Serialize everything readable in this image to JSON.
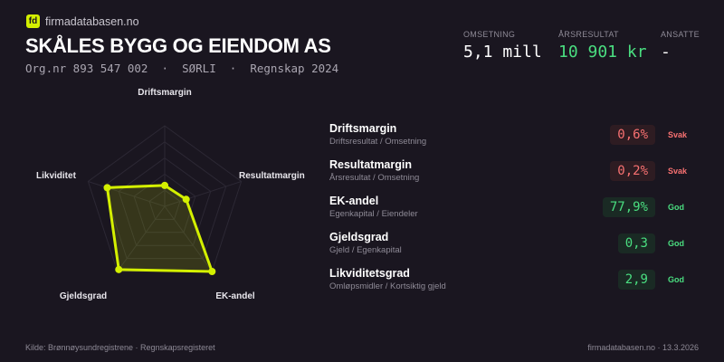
{
  "brand": {
    "logo_text": "fd",
    "name": "firmadatabasen.no"
  },
  "company": {
    "name": "SKÅLES BYGG OG EIENDOM AS",
    "subtitle": "Org.nr 893 547 002  ·  SØRLI  ·  Regnskap 2024"
  },
  "kpis": [
    {
      "label": "OMSETNING",
      "value": "5,1 mill",
      "color": "#ffffff"
    },
    {
      "label": "ÅRSRESULTAT",
      "value": "10 901 kr",
      "color": "#4ade80"
    },
    {
      "label": "ANSATTE",
      "value": "-",
      "color": "#ffffff"
    }
  ],
  "chart_data": {
    "type": "radar",
    "axes": [
      "Driftsmargin",
      "Resultatmargin",
      "EK-andel",
      "Gjeldsgrad",
      "Likviditet"
    ],
    "values": [
      0.26,
      0.28,
      1.0,
      0.97,
      0.75
    ],
    "range": [
      0,
      1
    ],
    "grid": true,
    "color": "#d4f000"
  },
  "metrics": [
    {
      "name": "Driftsmargin",
      "formula": "Driftsresultat / Omsetning",
      "value": "0,6%",
      "status": "Svak",
      "tone": "bad"
    },
    {
      "name": "Resultatmargin",
      "formula": "Årsresultat / Omsetning",
      "value": "0,2%",
      "status": "Svak",
      "tone": "bad"
    },
    {
      "name": "EK-andel",
      "formula": "Egenkapital / Eiendeler",
      "value": "77,9%",
      "status": "God",
      "tone": "good"
    },
    {
      "name": "Gjeldsgrad",
      "formula": "Gjeld / Egenkapital",
      "value": "0,3",
      "status": "God",
      "tone": "good"
    },
    {
      "name": "Likviditetsgrad",
      "formula": "Omløpsmidler / Kortsiktig gjeld",
      "value": "2,9",
      "status": "God",
      "tone": "good"
    }
  ],
  "colors": {
    "bad": "#f87171",
    "bad_bg": "#2e1c22",
    "good": "#4ade80",
    "good_bg": "#1a2a24"
  },
  "footer": {
    "source": "Kilde: Brønnøysundregistrene · Regnskapsregisteret",
    "site": "firmadatabasen.no · 13.3.2026"
  }
}
